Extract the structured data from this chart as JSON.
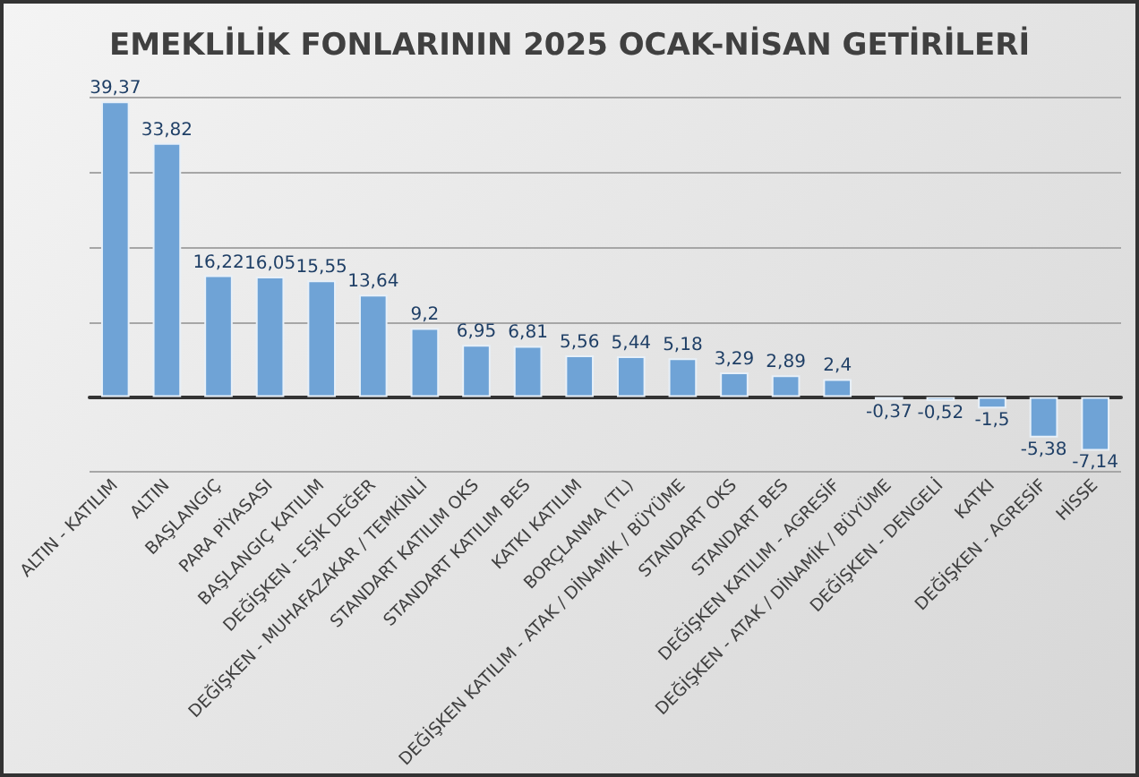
{
  "chart_data": {
    "type": "bar",
    "title": "EMEKLİLİK FONLARININ 2025 OCAK-NİSAN GETİRİLERİ",
    "categories": [
      "ALTIN - KATILIM",
      "ALTIN",
      "BAŞLANGIÇ",
      "PARA PİYASASI",
      "BAŞLANGIÇ KATILIM",
      "DEĞİŞKEN - EŞİK DEĞER",
      "DEĞİŞKEN - MUHAFAZAKAR / TEMKİNLİ",
      "STANDART KATILIM OKS",
      "STANDART KATILIM BES",
      "KATKI KATILIM",
      "BORÇLANMA (TL)",
      "DEĞİŞKEN KATILIM - ATAK / DİNAMİK / BÜYÜME",
      "STANDART OKS",
      "STANDART BES",
      "DEĞİŞKEN KATILIM - AGRESİF",
      "DEĞİŞKEN - ATAK / DİNAMİK / BÜYÜME",
      "DEĞİŞKEN - DENGELİ",
      "KATKI",
      "DEĞİŞKEN - AGRESİF",
      "HİSSE"
    ],
    "values": [
      39.37,
      33.82,
      16.22,
      16.05,
      15.55,
      13.64,
      9.2,
      6.95,
      6.81,
      5.56,
      5.44,
      5.18,
      3.29,
      2.89,
      2.4,
      -0.37,
      -0.52,
      -1.5,
      -5.38,
      -7.14
    ],
    "value_labels": [
      "39,37",
      "33,82",
      "16,22",
      "16,05",
      "15,55",
      "13,64",
      "9,2",
      "6,95",
      "6,81",
      "5,56",
      "5,44",
      "5,18",
      "3,29",
      "2,89",
      "2,4",
      "-0,37",
      "-0,52",
      "-1,5",
      "-5,38",
      "-7,14"
    ],
    "color": "#6fa3d6",
    "ylim": [
      -10,
      40
    ],
    "yticks": [
      {
        "value": -10,
        "label": null
      },
      {
        "value": 0,
        "label": null
      },
      {
        "value": 10,
        "label": null
      },
      {
        "value": 20,
        "label": null
      },
      {
        "value": 30,
        "label": null
      },
      {
        "value": 40,
        "label": null
      }
    ],
    "tick_labels": "x",
    "grid": "y"
  }
}
